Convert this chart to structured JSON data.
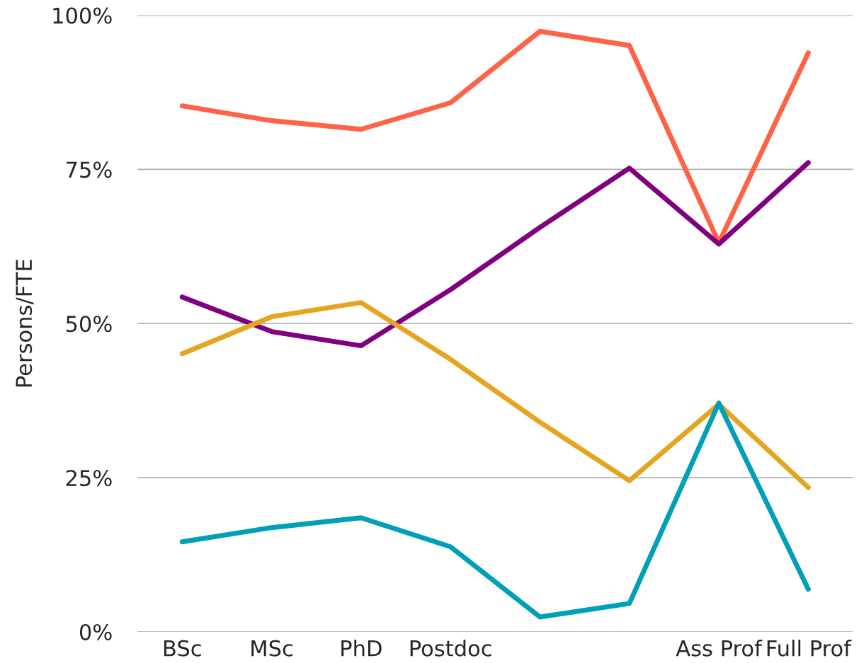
{
  "chart_data": {
    "type": "line",
    "ylabel": "Persons/FTE",
    "categories": [
      "BSc",
      "MSc",
      "PhD",
      "Postdoc",
      null,
      null,
      "Ass Prof",
      "Full Prof"
    ],
    "series": [
      {
        "color": "#ff6347",
        "values": [
          85.3,
          82.9,
          81.5,
          85.8,
          97.4,
          95.1,
          63.1,
          93.9
        ]
      },
      {
        "color": "#800080",
        "values": [
          54.3,
          48.7,
          46.4,
          55.5,
          65.6,
          75.2,
          62.9,
          76.1
        ]
      },
      {
        "color": "#e6a520",
        "values": [
          45.1,
          51.1,
          53.4,
          44.2,
          34.0,
          24.5,
          36.9,
          23.4
        ]
      },
      {
        "color": "#00a0b8",
        "values": [
          14.6,
          16.9,
          18.5,
          13.8,
          2.4,
          4.6,
          37.1,
          6.9
        ]
      }
    ],
    "ylim": [
      0,
      100
    ],
    "yticks": [
      {
        "value": 0,
        "label": "0%"
      },
      {
        "value": 25,
        "label": "25%"
      },
      {
        "value": 50,
        "label": "50%"
      },
      {
        "value": 75,
        "label": "75%"
      },
      {
        "value": 100,
        "label": "100%"
      }
    ],
    "grid": "y",
    "marker": "none",
    "line_style": "solid"
  }
}
